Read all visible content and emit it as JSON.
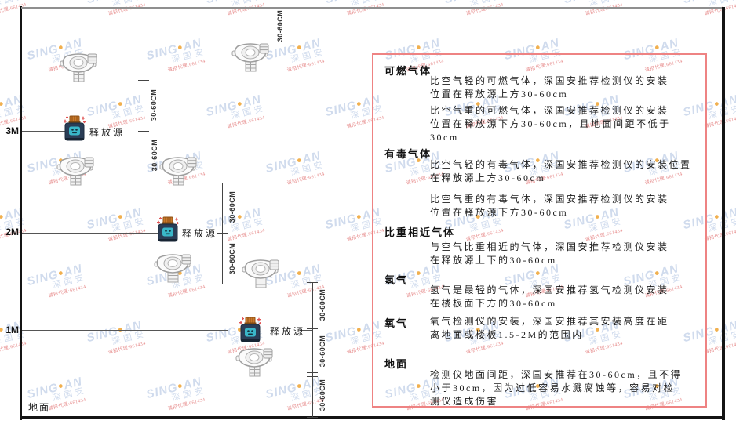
{
  "watermark": {
    "brand_prefix": "SING",
    "brand_dot": "●",
    "brand_suffix": "AN",
    "cjk_name": "深国安",
    "agent_text": "诚招代理:661434"
  },
  "colors": {
    "panel_border_red": "#ee8383",
    "watermark_blue": "#cbd8ec",
    "watermark_dot_orange": "#f0a83c",
    "watermark_agent_red": "#e47f7f",
    "source_body_navy": "#2a3d56",
    "source_cap_orange": "#c8792a",
    "source_emblem_teal": "#3ab7c9"
  },
  "diagram": {
    "height_labels": [
      "3M",
      "2M",
      "1M"
    ],
    "ground_label": "地面",
    "release_source_label": "释放源",
    "dim_label": "30-60CM"
  },
  "panel": {
    "sections": [
      {
        "heading": "可燃气体",
        "paras": [
          {
            "lines": [
              "比空气轻的可燃气体，深国安推荐检测仪的安装",
              "位置在释放源上方30-60cm"
            ]
          },
          {
            "lines": [
              "比空气重的可燃气体，深国安推荐检测仪的安装",
              "位置在释放源下方30-60cm，且地面间距不低于",
              "30cm"
            ]
          }
        ]
      },
      {
        "heading": "有毒气体",
        "paras": [
          {
            "lines": [
              "比空气轻的有毒气体，深国安推荐检测仪的安装位置",
              "在释放源上方30-60cm"
            ]
          },
          {
            "lines": [
              "比空气重的有毒气体，深国安推荐检测仪的安装",
              "位置在释放源下方30-60cm"
            ]
          }
        ]
      },
      {
        "heading": "比重相近气体",
        "paras": [
          {
            "lines": [
              "与空气比重相近的气体，深国安推荐检测仪安装",
              "在释放源上下的30-60cm"
            ]
          }
        ]
      },
      {
        "heading": "氢气",
        "paras": [
          {
            "lines": [
              "氢气是最轻的气体，深国安推荐氢气检测仪安装",
              "在楼板面下方的30-60cm"
            ]
          }
        ]
      },
      {
        "heading": "氧气",
        "paras": [
          {
            "lines": [
              "氧气检测仪的安装，深国安推荐其安装高度在距",
              "离地面或楼板1.5-2M的范围内"
            ]
          }
        ]
      },
      {
        "heading": "地面",
        "paras": [
          {
            "lines": [
              "检测仪地面间距，深国安推荐在30-60cm，且不得",
              "小于30cm，因为过低容易水溅腐蚀等，容易对检",
              "测仪造成伤害"
            ]
          }
        ]
      }
    ]
  }
}
